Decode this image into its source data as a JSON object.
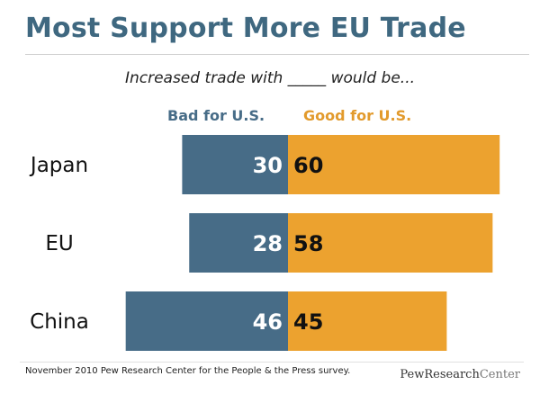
{
  "header": {
    "title": "Most Support More EU Trade",
    "subtitle": "Increased trade with _____ would be..."
  },
  "legend": {
    "bad_label": "Bad for U.S.",
    "good_label": "Good for U.S."
  },
  "colors": {
    "bad": "#476c87",
    "good": "#eca22f",
    "title": "#3f6880"
  },
  "chart_data": {
    "type": "bar",
    "orientation": "horizontal-diverging",
    "title": "Most Support More EU Trade",
    "subtitle": "Increased trade with _____ would be...",
    "categories": [
      "Japan",
      "EU",
      "China"
    ],
    "series": [
      {
        "name": "Bad for U.S.",
        "values": [
          30,
          28,
          46
        ]
      },
      {
        "name": "Good for U.S.",
        "values": [
          60,
          58,
          45
        ]
      }
    ],
    "xlabel": "",
    "ylabel": "",
    "grid": false
  },
  "footer": {
    "source": "November 2010 Pew Research Center for the People & the Press survey.",
    "logo_main": "PewResearch",
    "logo_suffix": "Center"
  }
}
